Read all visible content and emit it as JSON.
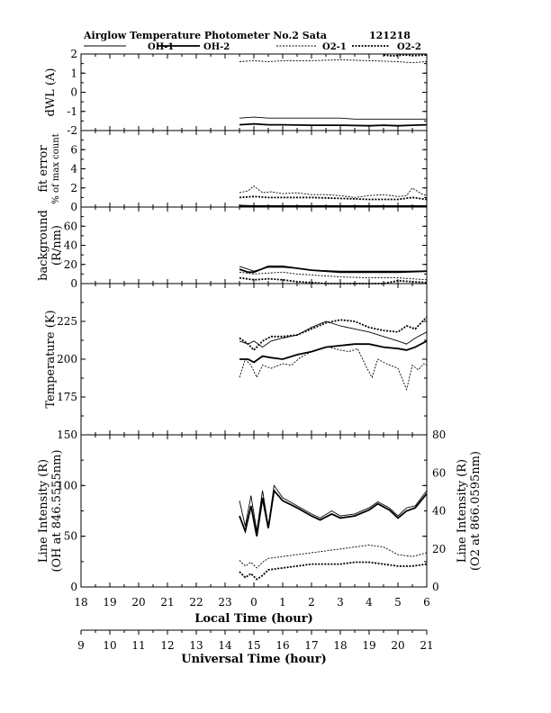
{
  "figure": {
    "title": "Airglow Temperature Photometer No.2  Sata",
    "date_label": "121218"
  },
  "legend": [
    {
      "name": "OH-1",
      "dash": "solid",
      "width": 0.9
    },
    {
      "name": "OH-2",
      "dash": "solid",
      "width": 1.8
    },
    {
      "name": "O2-1",
      "dash": "2,1.5",
      "width": 0.9
    },
    {
      "name": "O2-2",
      "dash": "2,1.5",
      "width": 1.8
    }
  ],
  "x_axes": {
    "local": {
      "label": "Local Time (hour)",
      "range": [
        18,
        30
      ],
      "ticks": [
        18,
        19,
        20,
        21,
        22,
        23,
        24,
        25,
        26,
        27,
        28,
        29,
        30
      ],
      "tick_labels": [
        "18",
        "19",
        "20",
        "21",
        "22",
        "23",
        "0",
        "1",
        "2",
        "3",
        "4",
        "5",
        "6"
      ]
    },
    "universal": {
      "label": "Universal Time (hour)",
      "range": [
        9,
        21
      ],
      "ticks": [
        9,
        10,
        11,
        12,
        13,
        14,
        15,
        16,
        17,
        18,
        19,
        20,
        21
      ],
      "tick_labels": [
        "9",
        "10",
        "11",
        "12",
        "13",
        "14",
        "15",
        "16",
        "17",
        "18",
        "19",
        "20",
        "21"
      ]
    }
  },
  "chart_data": [
    {
      "type": "line",
      "panel": "dwl",
      "ylabel": "dWL (A)",
      "ylim": [
        -2,
        2
      ],
      "yticks": [
        -2,
        -1,
        0,
        1,
        2
      ],
      "series": [
        {
          "name": "OH-1",
          "x": [
            23.5,
            24.0,
            24.5,
            25.0,
            26.0,
            27.0,
            27.5,
            28.5,
            29.0,
            30.0
          ],
          "y": [
            -1.35,
            -1.3,
            -1.35,
            -1.35,
            -1.35,
            -1.35,
            -1.4,
            -1.4,
            -1.4,
            -1.4
          ]
        },
        {
          "name": "OH-2",
          "x": [
            23.5,
            24.0,
            24.5,
            25.0,
            26.0,
            27.0,
            28.0,
            28.5,
            29.0,
            29.5,
            30.0
          ],
          "y": [
            -1.7,
            -1.65,
            -1.7,
            -1.7,
            -1.72,
            -1.72,
            -1.75,
            -1.72,
            -1.75,
            -1.72,
            -1.7
          ]
        },
        {
          "name": "O2-1",
          "x": [
            23.5,
            24.0,
            24.5,
            25.0,
            26.0,
            27.0,
            28.0,
            29.0,
            29.5,
            30.0
          ],
          "y": [
            1.6,
            1.65,
            1.6,
            1.65,
            1.65,
            1.7,
            1.65,
            1.6,
            1.55,
            1.6
          ]
        },
        {
          "name": "O2-2",
          "x": [
            28.5,
            28.8,
            29.2,
            29.6,
            30.0
          ],
          "y": [
            1.95,
            1.9,
            1.95,
            1.92,
            1.95
          ]
        }
      ]
    },
    {
      "type": "line",
      "panel": "fit_error",
      "ylabel": "fit error",
      "ylabel2": "% of max count",
      "ylim": [
        0,
        8
      ],
      "yticks": [
        0,
        2,
        4,
        6
      ],
      "series": [
        {
          "name": "OH-1",
          "x": [
            23.5,
            24.0,
            25.0,
            26.0,
            27.0,
            28.0,
            29.0,
            30.0
          ],
          "y": [
            0.2,
            0.15,
            0.15,
            0.15,
            0.15,
            0.15,
            0.15,
            0.15
          ]
        },
        {
          "name": "OH-2",
          "x": [
            23.5,
            24.0,
            25.0,
            26.0,
            27.0,
            28.0,
            29.0,
            30.0
          ],
          "y": [
            0.1,
            0.1,
            0.1,
            0.1,
            0.1,
            0.1,
            0.1,
            0.1
          ]
        },
        {
          "name": "O2-1",
          "x": [
            23.5,
            23.8,
            24.0,
            24.3,
            24.6,
            25.0,
            25.5,
            26.0,
            26.5,
            27.0,
            27.5,
            28.0,
            28.5,
            29.0,
            29.3,
            29.5,
            29.8,
            30.0
          ],
          "y": [
            1.5,
            1.7,
            2.2,
            1.5,
            1.6,
            1.4,
            1.5,
            1.3,
            1.3,
            1.2,
            1.0,
            1.2,
            1.3,
            1.1,
            1.2,
            2.0,
            1.4,
            1.2
          ]
        },
        {
          "name": "O2-2",
          "x": [
            23.5,
            24.0,
            24.5,
            25.0,
            26.0,
            27.0,
            28.0,
            29.0,
            29.5,
            30.0
          ],
          "y": [
            1.0,
            1.1,
            1.0,
            1.0,
            1.0,
            0.9,
            0.8,
            0.8,
            1.0,
            0.8
          ]
        }
      ]
    },
    {
      "type": "line",
      "panel": "background",
      "ylabel": "background",
      "ylabel2": "(R/nm)",
      "ylim": [
        0,
        80
      ],
      "yticks": [
        0,
        20,
        40,
        60
      ],
      "series": [
        {
          "name": "OH-1",
          "x": [
            23.5,
            23.8,
            24.0,
            24.5,
            25.0,
            25.5,
            26.0,
            27.0,
            28.0,
            29.0,
            30.0
          ],
          "y": [
            18,
            15,
            13,
            17,
            17,
            16,
            14,
            13,
            13,
            13,
            13
          ]
        },
        {
          "name": "OH-2",
          "x": [
            23.5,
            23.8,
            24.0,
            24.5,
            25.0,
            25.5,
            26.0,
            27.0,
            28.0,
            29.0,
            30.0
          ],
          "y": [
            15,
            12,
            12,
            18,
            18,
            16,
            14,
            12,
            12,
            12,
            13
          ]
        },
        {
          "name": "O2-1",
          "x": [
            23.5,
            24.0,
            24.5,
            25.0,
            25.5,
            26.0,
            26.5,
            27.0,
            28.0,
            29.0,
            29.5,
            30.0
          ],
          "y": [
            12,
            10,
            11,
            12,
            10,
            9,
            8,
            7,
            6,
            6,
            5,
            4
          ]
        },
        {
          "name": "O2-2",
          "x": [
            23.5,
            24.0,
            24.5,
            25.0,
            25.5,
            26.0,
            26.5,
            27.0,
            28.0,
            28.5,
            29.0,
            29.5,
            30.0
          ],
          "y": [
            6,
            4,
            5,
            4,
            2,
            1,
            0,
            0,
            0,
            0,
            3,
            2,
            1
          ]
        }
      ]
    },
    {
      "type": "line",
      "panel": "temperature",
      "ylabel": "Temperature (K)",
      "ylim": [
        150,
        250
      ],
      "yticks": [
        175,
        200,
        225
      ],
      "series": [
        {
          "name": "OH-1",
          "x": [
            23.5,
            23.8,
            24.0,
            24.3,
            24.6,
            25.0,
            25.5,
            26.0,
            26.5,
            27.0,
            27.5,
            28.0,
            28.5,
            29.0,
            29.3,
            29.6,
            30.0
          ],
          "y": [
            212,
            210,
            212,
            208,
            212,
            214,
            216,
            221,
            225,
            222,
            220,
            218,
            215,
            212,
            210,
            214,
            218
          ]
        },
        {
          "name": "OH-2",
          "x": [
            23.5,
            23.8,
            24.0,
            24.3,
            24.6,
            25.0,
            25.5,
            26.0,
            26.5,
            27.0,
            27.5,
            28.0,
            28.5,
            29.0,
            29.3,
            29.6,
            30.0
          ],
          "y": [
            200,
            200,
            198,
            202,
            201,
            200,
            203,
            205,
            208,
            209,
            210,
            210,
            208,
            207,
            206,
            208,
            212
          ]
        },
        {
          "name": "O2-1",
          "x": [
            23.5,
            23.7,
            23.9,
            24.1,
            24.3,
            24.6,
            25.0,
            25.3,
            25.6,
            26.0,
            26.3,
            26.6,
            27.0,
            27.3,
            27.6,
            27.9,
            28.1,
            28.3,
            28.6,
            29.0,
            29.3,
            29.5,
            29.7,
            29.9,
            30.0
          ],
          "y": [
            188,
            200,
            196,
            188,
            196,
            194,
            197,
            196,
            201,
            205,
            207,
            208,
            206,
            205,
            207,
            195,
            188,
            200,
            197,
            194,
            180,
            196,
            193,
            197,
            196
          ]
        },
        {
          "name": "O2-2",
          "x": [
            23.5,
            23.8,
            24.0,
            24.3,
            24.6,
            25.0,
            25.5,
            26.0,
            26.5,
            27.0,
            27.5,
            28.0,
            28.5,
            29.0,
            29.3,
            29.6,
            30.0
          ],
          "y": [
            214,
            210,
            206,
            212,
            215,
            215,
            216,
            220,
            224,
            226,
            225,
            221,
            219,
            218,
            222,
            220,
            228
          ]
        }
      ]
    },
    {
      "type": "line",
      "panel": "intensity",
      "ylabel": "Line Intensity (R)",
      "ylabel2": "(OH at 846.5555nm)",
      "ylim": [
        0,
        150
      ],
      "yticks": [
        0,
        50,
        100,
        150
      ],
      "y2label": "Line Intensity (R)",
      "y2label2": "(O2 at 866.0595nm)",
      "y2lim": [
        0,
        80
      ],
      "y2ticks": [
        0,
        20,
        40,
        60,
        80
      ],
      "series": [
        {
          "name": "OH-1",
          "axis": "left",
          "x": [
            23.5,
            23.7,
            23.9,
            24.1,
            24.3,
            24.5,
            24.7,
            25.0,
            25.5,
            26.0,
            26.3,
            26.7,
            27.0,
            27.5,
            28.0,
            28.3,
            28.7,
            29.0,
            29.3,
            29.6,
            30.0
          ],
          "y": [
            85,
            60,
            90,
            55,
            95,
            60,
            100,
            88,
            80,
            72,
            68,
            75,
            70,
            72,
            78,
            84,
            78,
            70,
            78,
            80,
            95
          ]
        },
        {
          "name": "OH-2",
          "axis": "left",
          "x": [
            23.5,
            23.7,
            23.9,
            24.1,
            24.3,
            24.5,
            24.7,
            25.0,
            25.5,
            26.0,
            26.3,
            26.7,
            27.0,
            27.5,
            28.0,
            28.3,
            28.7,
            29.0,
            29.3,
            29.6,
            30.0
          ],
          "y": [
            70,
            55,
            80,
            50,
            88,
            58,
            95,
            85,
            78,
            70,
            66,
            72,
            68,
            70,
            76,
            82,
            76,
            68,
            75,
            78,
            92
          ]
        },
        {
          "name": "O2-1",
          "axis": "right",
          "x": [
            23.5,
            23.7,
            23.9,
            24.1,
            24.3,
            24.5,
            25.0,
            25.5,
            26.0,
            26.5,
            27.0,
            27.5,
            28.0,
            28.5,
            29.0,
            29.5,
            30.0
          ],
          "y": [
            14,
            11,
            13,
            10,
            13,
            15,
            16,
            17,
            18,
            19,
            20,
            21,
            22,
            21,
            17,
            16,
            18
          ]
        },
        {
          "name": "O2-2",
          "axis": "right",
          "x": [
            23.5,
            23.7,
            23.9,
            24.1,
            24.3,
            24.5,
            25.0,
            25.5,
            26.0,
            26.5,
            27.0,
            27.5,
            28.0,
            28.5,
            29.0,
            29.5,
            30.0
          ],
          "y": [
            8,
            5,
            7,
            4,
            6,
            9,
            10,
            11,
            12,
            12,
            12,
            13,
            13,
            12,
            11,
            11,
            12
          ]
        }
      ]
    }
  ]
}
